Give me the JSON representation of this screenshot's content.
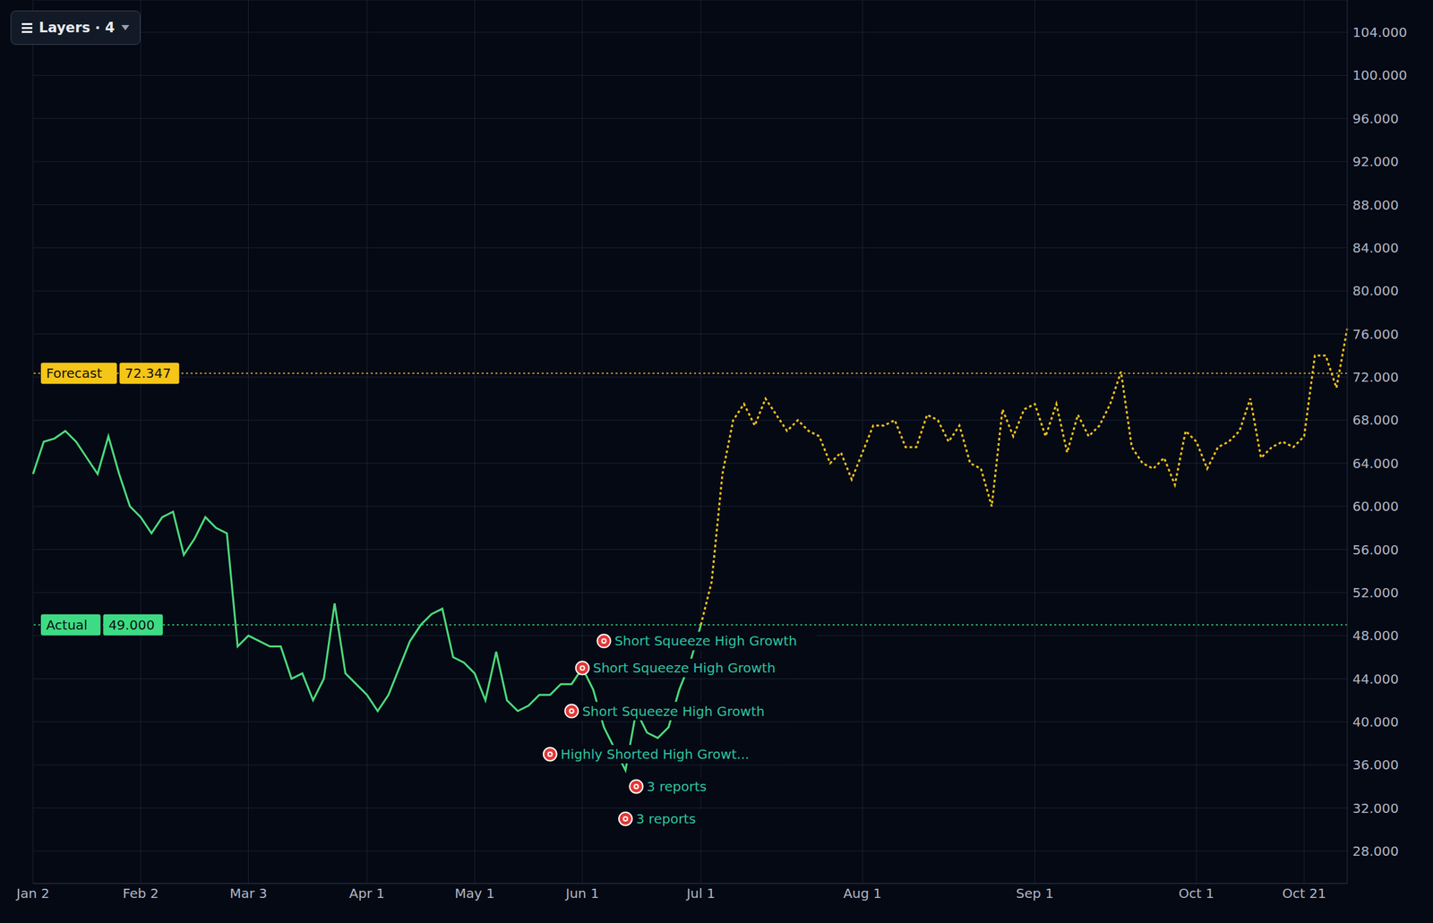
{
  "chart_data": {
    "type": "line",
    "button": "Layers · 4",
    "grid": true,
    "categories": [
      "Jan 2",
      null,
      null,
      null,
      null,
      null,
      null,
      null,
      null,
      null,
      "Feb 2",
      null,
      null,
      null,
      null,
      null,
      null,
      null,
      null,
      null,
      "Mar 3",
      null,
      null,
      null,
      null,
      null,
      null,
      null,
      null,
      null,
      null,
      "Apr 1",
      null,
      null,
      null,
      null,
      null,
      null,
      null,
      null,
      null,
      "May 1",
      null,
      null,
      null,
      null,
      null,
      null,
      null,
      null,
      null,
      "Jun 1",
      null,
      null,
      null,
      null,
      null,
      null,
      null,
      null,
      null,
      null,
      "Jul 1",
      null,
      null,
      null,
      null,
      null,
      null,
      null,
      null,
      null,
      null,
      null,
      null,
      null,
      null,
      "Aug 1",
      null,
      null,
      null,
      null,
      null,
      null,
      null,
      null,
      null,
      null,
      null,
      null,
      null,
      null,
      null,
      "Sep 1",
      null,
      null,
      null,
      null,
      null,
      null,
      null,
      null,
      null,
      null,
      null,
      null,
      null,
      null,
      "Oct 1",
      null,
      null,
      null,
      null,
      null,
      null,
      null,
      null,
      null,
      "Oct 21",
      null,
      null,
      null,
      null
    ],
    "series": [
      {
        "name": "Actual",
        "color": "#4cd97b",
        "line_style": "solid",
        "values": [
          63.0,
          66.0,
          66.3,
          67.0,
          66.0,
          64.5,
          63.0,
          66.5,
          63.0,
          60.0,
          59.0,
          57.5,
          59.0,
          59.5,
          55.5,
          57.0,
          59.0,
          58.0,
          57.5,
          47.0,
          48.0,
          47.5,
          47.0,
          47.0,
          44.0,
          44.5,
          42.0,
          44.0,
          51.0,
          44.5,
          43.5,
          42.5,
          41.0,
          42.5,
          45.0,
          47.5,
          49.0,
          50.0,
          50.5,
          46.0,
          45.5,
          44.5,
          42.0,
          46.5,
          42.0,
          41.0,
          41.5,
          42.5,
          42.5,
          43.5,
          43.5,
          45.0,
          43.0,
          39.5,
          37.5,
          35.5,
          41.0,
          39.0,
          38.5,
          39.5,
          43.0,
          45.5,
          49.0,
          null,
          null,
          null,
          null,
          null,
          null,
          null,
          null,
          null,
          null,
          null,
          null,
          null,
          null,
          null,
          null,
          null,
          null,
          null,
          null,
          null,
          null,
          null,
          null,
          null,
          null,
          null,
          null,
          null,
          null,
          null,
          null,
          null,
          null,
          null,
          null,
          null,
          null,
          null,
          null,
          null,
          null,
          null,
          null,
          null,
          null,
          null,
          null,
          null,
          null,
          null,
          null,
          null,
          null,
          null,
          null,
          null,
          null,
          null,
          null
        ]
      },
      {
        "name": "Forecast",
        "color": "#f5c518",
        "line_style": "dotted",
        "values": [
          null,
          null,
          null,
          null,
          null,
          null,
          null,
          null,
          null,
          null,
          null,
          null,
          null,
          null,
          null,
          null,
          null,
          null,
          null,
          null,
          null,
          null,
          null,
          null,
          null,
          null,
          null,
          null,
          null,
          null,
          null,
          null,
          null,
          null,
          null,
          null,
          null,
          null,
          null,
          null,
          null,
          null,
          null,
          null,
          null,
          null,
          null,
          null,
          null,
          null,
          null,
          null,
          null,
          null,
          null,
          null,
          null,
          null,
          null,
          null,
          null,
          null,
          49.0,
          53.0,
          63.0,
          68.0,
          69.5,
          67.5,
          70.0,
          68.5,
          67.0,
          68.0,
          67.0,
          66.5,
          64.0,
          65.0,
          62.5,
          65.0,
          67.5,
          67.5,
          68.0,
          65.5,
          65.5,
          68.5,
          68.0,
          66.0,
          67.5,
          64.0,
          63.5,
          60.0,
          69.0,
          66.5,
          69.0,
          69.5,
          66.5,
          69.5,
          65.0,
          68.5,
          66.5,
          67.5,
          69.5,
          72.5,
          65.5,
          64.0,
          63.5,
          64.5,
          62.0,
          67.0,
          66.0,
          63.5,
          65.5,
          66.0,
          67.0,
          70.0,
          64.5,
          65.5,
          66.0,
          65.5,
          66.5,
          74.0,
          74.0,
          71.0,
          76.5
        ]
      }
    ],
    "ylim": [
      25,
      107
    ],
    "yticks": [
      {
        "value": 28,
        "label": "28.000"
      },
      {
        "value": 32,
        "label": "32.000"
      },
      {
        "value": 36,
        "label": "36.000"
      },
      {
        "value": 40,
        "label": "40.000"
      },
      {
        "value": 44,
        "label": "44.000"
      },
      {
        "value": 48,
        "label": "48.000"
      },
      {
        "value": 52,
        "label": "52.000"
      },
      {
        "value": 56,
        "label": "56.000"
      },
      {
        "value": 60,
        "label": "60.000"
      },
      {
        "value": 64,
        "label": "64.000"
      },
      {
        "value": 68,
        "label": "68.000"
      },
      {
        "value": 72,
        "label": "72.000"
      },
      {
        "value": 76,
        "label": "76.000"
      },
      {
        "value": 80,
        "label": "80.000"
      },
      {
        "value": 84,
        "label": "84.000"
      },
      {
        "value": 88,
        "label": "88.000"
      },
      {
        "value": 92,
        "label": "92.000"
      },
      {
        "value": 96,
        "label": "96.000"
      },
      {
        "value": 100,
        "label": "100.000"
      },
      {
        "value": 104,
        "label": "104.000"
      }
    ],
    "reference_lines": [
      {
        "name": "Forecast",
        "value": 72.347,
        "label": "72.347",
        "color": "#f5c518"
      },
      {
        "name": "Actual",
        "value": 49.0,
        "label": "49.000",
        "color": "#3ddc84"
      }
    ],
    "annotations": [
      {
        "text": "Short Squeeze High Growth",
        "x": 53,
        "y": 47.5
      },
      {
        "text": "Short Squeeze High Growth",
        "x": 51,
        "y": 45
      },
      {
        "text": "Short Squeeze High Growth",
        "x": 50,
        "y": 41
      },
      {
        "text": "Highly Shorted High Growt...",
        "x": 48,
        "y": 37
      },
      {
        "text": "3 reports",
        "x": 56,
        "y": 34
      },
      {
        "text": "3 reports",
        "x": 55,
        "y": 31
      }
    ]
  }
}
